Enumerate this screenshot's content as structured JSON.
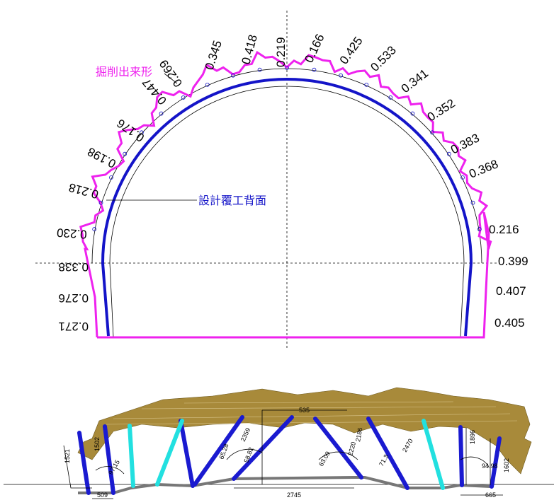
{
  "legend": {
    "excavation": "掘削出来形",
    "lining": "設計覆工背面"
  },
  "arch_labels": [
    "0.345",
    "0.418",
    "0.219",
    "0.166",
    "0.425",
    "0.533",
    "0.341",
    "0.352",
    "0.383",
    "0.368",
    "0.216",
    "0.399",
    "0.407",
    "0.405"
  ],
  "arch_labels_left": [
    "0.269",
    "0.447",
    "0.176",
    "0.198",
    "0.218",
    "0.230",
    "0.338",
    "0.276",
    "0.271"
  ],
  "bottom_labels": [
    "535",
    "2359",
    "65.28",
    "58.82",
    "63.09",
    "2220",
    "2186",
    "71.3",
    "2470",
    "1896",
    "94.98",
    "1602",
    "1502",
    "1521",
    "97.15",
    "509",
    "2745",
    "665"
  ]
}
